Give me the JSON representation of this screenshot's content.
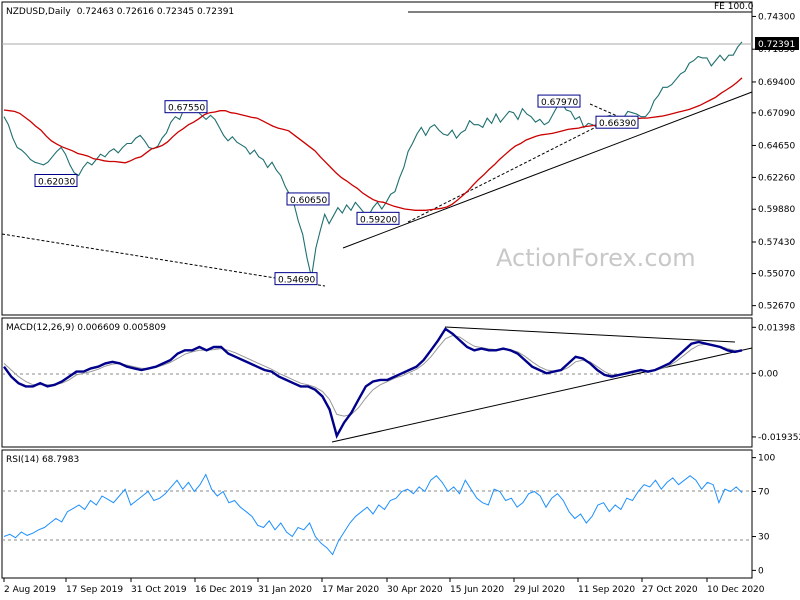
{
  "chart_data": [
    {
      "type": "line",
      "title": "NZDUSD,Daily",
      "ohlc": "0.72463 0.72616 0.72345 0.72391",
      "symbol": "NZDUSD",
      "timeframe": "Daily",
      "last_price_label": "0.72391",
      "fibonacci_label": "FE 100.0",
      "watermark": "ActionForex.com",
      "y_ticks": [
        "0.74300",
        "0.71850",
        "0.69400",
        "0.67090",
        "0.64650",
        "0.62260",
        "0.59880",
        "0.57430",
        "0.55070",
        "0.52670"
      ],
      "y_tick_values": [
        0.743,
        0.7185,
        0.694,
        0.6709,
        0.6465,
        0.6226,
        0.5988,
        0.5743,
        0.5507,
        0.5267
      ],
      "ylim": [
        0.5212,
        0.7523
      ],
      "price_labels": [
        {
          "text": "0.67550",
          "value": 0.6755
        },
        {
          "text": "0.62030",
          "value": 0.6203
        },
        {
          "text": "0.60650",
          "value": 0.6065
        },
        {
          "text": "0.59200",
          "value": 0.592
        },
        {
          "text": "0.54690",
          "value": 0.5469
        },
        {
          "text": "0.67970",
          "value": 0.6797
        },
        {
          "text": "0.66390",
          "value": 0.6639
        }
      ],
      "series": [
        {
          "name": "",
          "color": "#1f6f6f",
          "values": [
            0.668,
            0.662,
            0.652,
            0.645,
            0.643,
            0.64,
            0.636,
            0.634,
            0.633,
            0.632,
            0.634,
            0.638,
            0.642,
            0.645,
            0.64,
            0.632,
            0.626,
            0.624,
            0.63,
            0.634,
            0.632,
            0.636,
            0.64,
            0.638,
            0.642,
            0.644,
            0.641,
            0.645,
            0.648,
            0.648,
            0.652,
            0.654,
            0.65,
            0.645,
            0.644,
            0.646,
            0.652,
            0.656,
            0.664,
            0.668,
            0.666,
            0.674,
            0.676,
            0.675,
            0.672,
            0.669,
            0.666,
            0.669,
            0.666,
            0.66,
            0.654,
            0.65,
            0.653,
            0.649,
            0.647,
            0.645,
            0.64,
            0.643,
            0.638,
            0.636,
            0.63,
            0.634,
            0.628,
            0.624,
            0.616,
            0.61,
            0.603,
            0.59,
            0.58,
            0.562,
            0.548,
            0.57,
            0.583,
            0.595,
            0.588,
            0.594,
            0.6,
            0.596,
            0.602,
            0.598,
            0.604,
            0.6,
            0.596,
            0.594,
            0.6,
            0.604,
            0.599,
            0.604,
            0.61,
            0.612,
            0.622,
            0.63,
            0.642,
            0.648,
            0.655,
            0.66,
            0.654,
            0.66,
            0.662,
            0.658,
            0.655,
            0.654,
            0.658,
            0.652,
            0.656,
            0.658,
            0.665,
            0.662,
            0.662,
            0.66,
            0.667,
            0.663,
            0.67,
            0.664,
            0.668,
            0.672,
            0.671,
            0.666,
            0.674,
            0.67,
            0.668,
            0.664,
            0.666,
            0.662,
            0.664,
            0.67,
            0.676,
            0.678,
            0.673,
            0.672,
            0.666,
            0.668,
            0.66,
            0.663,
            0.662,
            0.66,
            0.665,
            0.668,
            0.669,
            0.666,
            0.664,
            0.667,
            0.672,
            0.671,
            0.67,
            0.668,
            0.668,
            0.672,
            0.68,
            0.684,
            0.69,
            0.69,
            0.692,
            0.696,
            0.7,
            0.702,
            0.708,
            0.71,
            0.713,
            0.712,
            0.712,
            0.706,
            0.71,
            0.714,
            0.71,
            0.714,
            0.714,
            0.72,
            0.724
          ]
        },
        {
          "name": "",
          "color": "#cc0000",
          "values": [
            0.673,
            0.6725,
            0.672,
            0.6705,
            0.6675,
            0.6645,
            0.661,
            0.658,
            0.6535,
            0.65,
            0.6475,
            0.6455,
            0.644,
            0.6425,
            0.6405,
            0.6395,
            0.6385,
            0.6365,
            0.636,
            0.635,
            0.6345,
            0.6345,
            0.634,
            0.6335,
            0.635,
            0.637,
            0.638,
            0.641,
            0.644,
            0.645,
            0.6465,
            0.649,
            0.653,
            0.6565,
            0.659,
            0.662,
            0.664,
            0.6665,
            0.6695,
            0.671,
            0.6715,
            0.6725,
            0.6725,
            0.671,
            0.6705,
            0.6695,
            0.6685,
            0.6675,
            0.667,
            0.665,
            0.663,
            0.661,
            0.6595,
            0.6585,
            0.6575,
            0.6545,
            0.6515,
            0.6485,
            0.6455,
            0.6425,
            0.638,
            0.634,
            0.63,
            0.626,
            0.6225,
            0.62,
            0.617,
            0.6145,
            0.611,
            0.6085,
            0.606,
            0.6045,
            0.604,
            0.6025,
            0.601,
            0.6,
            0.599,
            0.5985,
            0.598,
            0.598,
            0.598,
            0.5985,
            0.599,
            0.5995,
            0.6005,
            0.6025,
            0.6055,
            0.609,
            0.6125,
            0.617,
            0.621,
            0.6245,
            0.6285,
            0.632,
            0.636,
            0.6395,
            0.643,
            0.646,
            0.648,
            0.6505,
            0.652,
            0.6535,
            0.6545,
            0.655,
            0.6555,
            0.6565,
            0.6575,
            0.6585,
            0.659,
            0.6595,
            0.6605,
            0.661,
            0.6615,
            0.6625,
            0.663,
            0.664,
            0.6645,
            0.665,
            0.6655,
            0.666,
            0.6665,
            0.667,
            0.667,
            0.6675,
            0.668,
            0.6685,
            0.6695,
            0.6705,
            0.6715,
            0.6725,
            0.6735,
            0.675,
            0.6765,
            0.6785,
            0.6805,
            0.6825,
            0.6855,
            0.688,
            0.6905,
            0.6935,
            0.697
          ]
        }
      ]
    },
    {
      "type": "line",
      "title": "MACD(12,26,9) 0.006609 0.005809",
      "y_ticks": [
        "0.01398",
        "0.00",
        "-0.019352"
      ],
      "y_tick_values": [
        0.01398,
        0.0,
        -0.019352
      ],
      "ylim": [
        -0.0218,
        0.0162
      ],
      "series": [
        {
          "name": "",
          "color": "#00008b",
          "values": [
            0.002,
            -0.001,
            -0.003,
            -0.004,
            -0.004,
            -0.003,
            -0.004,
            -0.0035,
            -0.0025,
            -0.001,
            0.0005,
            0.0005,
            0.0015,
            0.002,
            0.003,
            0.0035,
            0.003,
            0.002,
            0.0015,
            0.001,
            0.0015,
            0.002,
            0.003,
            0.004,
            0.006,
            0.007,
            0.007,
            0.008,
            0.007,
            0.008,
            0.008,
            0.006,
            0.005,
            0.004,
            0.003,
            0.002,
            0.001,
            0.0005,
            -0.001,
            -0.002,
            -0.003,
            -0.004,
            -0.004,
            -0.005,
            -0.007,
            -0.011,
            -0.019,
            -0.015,
            -0.012,
            -0.008,
            -0.004,
            -0.0025,
            -0.002,
            -0.002,
            -0.001,
            0.0,
            0.001,
            0.002,
            0.004,
            0.007,
            0.01,
            0.0135,
            0.012,
            0.01,
            0.008,
            0.007,
            0.0075,
            0.007,
            0.007,
            0.0075,
            0.007,
            0.006,
            0.004,
            0.002,
            0.001,
            0.0,
            0.0005,
            0.001,
            0.003,
            0.005,
            0.0045,
            0.003,
            0.001,
            -0.0005,
            -0.001,
            -0.0005,
            0.0,
            0.0005,
            0.001,
            0.0005,
            0.001,
            0.002,
            0.003,
            0.005,
            0.007,
            0.009,
            0.0095,
            0.009,
            0.0085,
            0.008,
            0.007,
            0.0065,
            0.007
          ]
        },
        {
          "name": "",
          "color": "#999999",
          "values": [
            0.003,
            0.001,
            -0.001,
            -0.0025,
            -0.0035,
            -0.0035,
            -0.0035,
            -0.0035,
            -0.003,
            -0.002,
            -0.0005,
            0.0,
            0.0005,
            0.0012,
            0.0022,
            0.0028,
            0.003,
            0.0025,
            0.002,
            0.0015,
            0.0015,
            0.0018,
            0.0025,
            0.0033,
            0.0045,
            0.0058,
            0.0065,
            0.007,
            0.007,
            0.0072,
            0.0075,
            0.007,
            0.0062,
            0.0052,
            0.0042,
            0.0032,
            0.0022,
            0.0012,
            0.0,
            -0.001,
            -0.002,
            -0.003,
            -0.0035,
            -0.0042,
            -0.0055,
            -0.008,
            -0.0125,
            -0.013,
            -0.0125,
            -0.0105,
            -0.0075,
            -0.005,
            -0.0035,
            -0.0025,
            -0.0015,
            -0.0008,
            0.0002,
            0.0012,
            0.0028,
            0.005,
            0.0078,
            0.0105,
            0.0115,
            0.011,
            0.0095,
            0.0082,
            0.0078,
            0.0074,
            0.0072,
            0.0072,
            0.0071,
            0.0065,
            0.0052,
            0.0035,
            0.002,
            0.001,
            0.0007,
            0.0008,
            0.0018,
            0.0035,
            0.004,
            0.0035,
            0.002,
            0.0005,
            -0.0005,
            -0.0006,
            -0.0003,
            0.0002,
            0.0007,
            0.0007,
            0.0009,
            0.0015,
            0.0024,
            0.0038,
            0.0055,
            0.0073,
            0.0085,
            0.0088,
            0.0086,
            0.0082,
            0.0075,
            0.007,
            0.0068
          ]
        }
      ]
    },
    {
      "type": "line",
      "title": "RSI(14) 68.7983",
      "y_ticks": [
        "100",
        "70",
        "30",
        "0"
      ],
      "y_tick_values": [
        100,
        70,
        30,
        0
      ],
      "ylim": [
        -5,
        105
      ],
      "series": [
        {
          "name": "",
          "color": "#1e90ff",
          "values": [
            30,
            32,
            29,
            34,
            31,
            33,
            36,
            38,
            42,
            46,
            43,
            52,
            55,
            58,
            54,
            62,
            58,
            66,
            63,
            60,
            66,
            72,
            58,
            62,
            66,
            70,
            62,
            64,
            68,
            74,
            80,
            72,
            78,
            70,
            76,
            85,
            72,
            66,
            70,
            60,
            62,
            56,
            52,
            48,
            40,
            38,
            44,
            36,
            42,
            34,
            30,
            38,
            36,
            42,
            30,
            24,
            20,
            14,
            26,
            34,
            42,
            48,
            52,
            56,
            50,
            58,
            54,
            62,
            64,
            70,
            72,
            68,
            74,
            70,
            80,
            84,
            78,
            70,
            74,
            68,
            80,
            72,
            64,
            60,
            58,
            72,
            70,
            62,
            64,
            56,
            60,
            68,
            70,
            66,
            56,
            64,
            68,
            62,
            52,
            46,
            50,
            42,
            48,
            58,
            60,
            52,
            58,
            54,
            64,
            62,
            70,
            76,
            74,
            80,
            72,
            78,
            82,
            76,
            80,
            84,
            80,
            72,
            78,
            76,
            60,
            72,
            70,
            74,
            69
          ]
        }
      ]
    }
  ],
  "x_axis_labels": [
    "2 Aug 2019",
    "17 Sep 2019",
    "31 Oct 2019",
    "16 Dec 2019",
    "31 Jan 2020",
    "17 Mar 2020",
    "30 Apr 2020",
    "15 Jun 2020",
    "29 Jul 2020",
    "11 Sep 2020",
    "27 Oct 2020",
    "10 Dec 2020"
  ],
  "colors": {
    "price": "#1f6f6f",
    "ma": "#cc0000",
    "macd": "#00008b",
    "signal": "#999999",
    "rsi": "#1e90ff"
  }
}
